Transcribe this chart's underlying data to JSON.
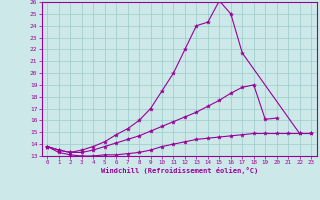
{
  "xlabel": "Windchill (Refroidissement éolien,°C)",
  "ylabel": "",
  "background_color": "#cce8e8",
  "line_color": "#990099",
  "grid_color": "#99cccc",
  "xlim": [
    -0.5,
    23.5
  ],
  "ylim": [
    13,
    26
  ],
  "yticks": [
    13,
    14,
    15,
    16,
    17,
    18,
    19,
    20,
    21,
    22,
    23,
    24,
    25,
    26
  ],
  "xticks": [
    0,
    1,
    2,
    3,
    4,
    5,
    6,
    7,
    8,
    9,
    10,
    11,
    12,
    13,
    14,
    15,
    16,
    17,
    18,
    19,
    20,
    21,
    22,
    23
  ],
  "series": [
    {
      "x": [
        0,
        1,
        2,
        3,
        4,
        5,
        6,
        7,
        8,
        9,
        10,
        11,
        12,
        13,
        14,
        15,
        16,
        17,
        18,
        19,
        20,
        21,
        22,
        23
      ],
      "y": [
        13.8,
        13.3,
        13.1,
        13.0,
        13.0,
        13.1,
        13.1,
        13.2,
        13.3,
        13.5,
        13.8,
        14.0,
        14.2,
        14.4,
        14.5,
        14.6,
        14.7,
        14.8,
        14.9,
        14.9,
        14.9,
        14.9,
        14.9,
        14.9
      ]
    },
    {
      "x": [
        0,
        1,
        2,
        3,
        4,
        5,
        6,
        7,
        8,
        9,
        10,
        11,
        12,
        13,
        14,
        15,
        16,
        17,
        18,
        19,
        20
      ],
      "y": [
        13.8,
        13.5,
        13.3,
        13.3,
        13.5,
        13.8,
        14.1,
        14.4,
        14.7,
        15.1,
        15.5,
        15.9,
        16.3,
        16.7,
        17.2,
        17.7,
        18.3,
        18.8,
        19.0,
        16.1,
        16.2
      ]
    },
    {
      "x": [
        0,
        1,
        2,
        3,
        4,
        5,
        6,
        7,
        8,
        9,
        10,
        11,
        12,
        13,
        14,
        15,
        16,
        17,
        22,
        23
      ],
      "y": [
        13.8,
        13.5,
        13.3,
        13.5,
        13.8,
        14.2,
        14.8,
        15.3,
        16.0,
        17.0,
        18.5,
        20.0,
        22.0,
        24.0,
        24.3,
        26.1,
        25.0,
        21.7,
        14.9,
        14.9
      ]
    }
  ]
}
